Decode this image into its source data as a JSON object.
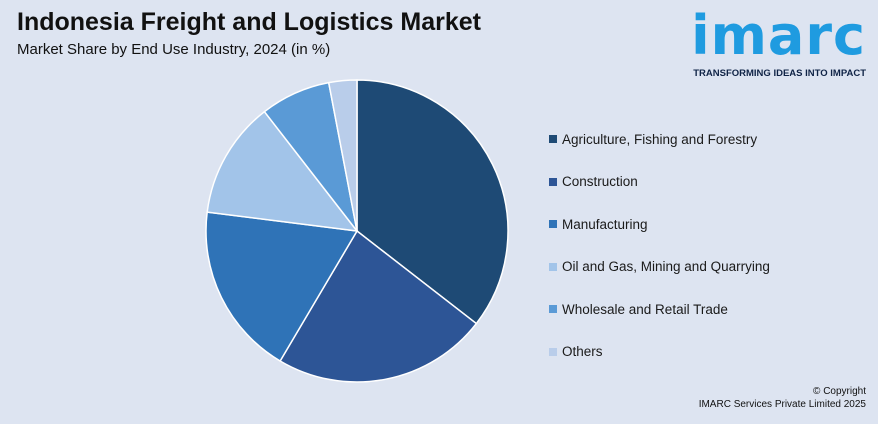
{
  "header": {
    "title": "Indonesia Freight and Logistics Market",
    "subtitle": "Market Share by End Use Industry, 2024 (in %)"
  },
  "logo": {
    "word": "imarc",
    "tagline": "TRANSFORMING IDEAS INTO IMPACT",
    "color": "#1f9be0"
  },
  "chart_data": {
    "type": "pie",
    "title": "Indonesia Freight and Logistics Market",
    "subtitle": "Market Share by End Use Industry, 2024 (in %)",
    "legend_position": "right",
    "series": [
      {
        "name": "Agriculture, Fishing and Forestry",
        "value": 35.5,
        "color": "#1e4a75"
      },
      {
        "name": "Construction",
        "value": 23.0,
        "color": "#2d5596"
      },
      {
        "name": "Manufacturing",
        "value": 18.5,
        "color": "#2f73b7"
      },
      {
        "name": "Oil and Gas, Mining and Quarrying",
        "value": 12.5,
        "color": "#a2c4e9"
      },
      {
        "name": "Wholesale and Retail Trade",
        "value": 7.5,
        "color": "#5a9ad6"
      },
      {
        "name": "Others",
        "value": 3.0,
        "color": "#b9cdea"
      }
    ]
  },
  "footer": {
    "copyright_line1": "© Copyright",
    "copyright_line2": "IMARC Services Private Limited 2025"
  }
}
